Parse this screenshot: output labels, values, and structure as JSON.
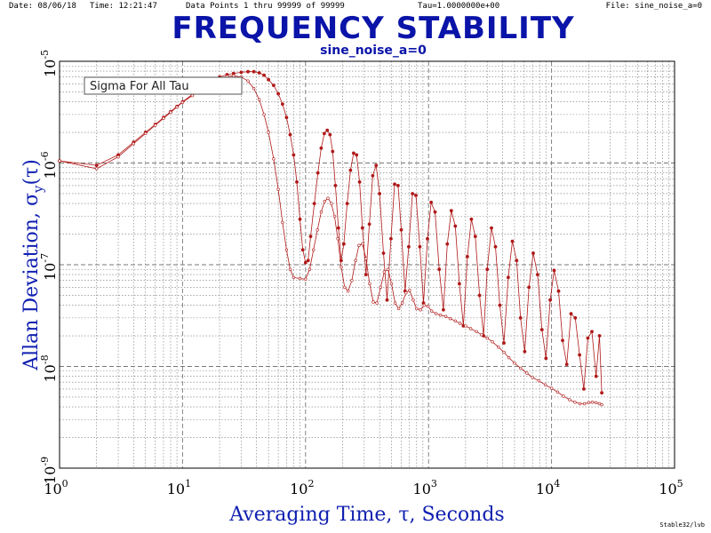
{
  "header": {
    "date": "Date: 08/06/18",
    "time": "Time: 12:21:47",
    "data_points": "Data Points 1 thru 99999 of 99999",
    "tau": "Tau=1.0000000e+00",
    "file": "File: sine_noise_a=0"
  },
  "credit": "Stable32/lvb",
  "colors": {
    "title": "#0a14a8",
    "series": "#b01818",
    "grid": "#777777"
  },
  "chart_data": {
    "type": "line",
    "title": "FREQUENCY STABILITY",
    "subtitle": "sine_noise_a=0",
    "xlabel": "Averaging Time, τ, Seconds",
    "ylabel": "Allan Deviation, σy(τ)",
    "ylabel_main": "Allan Deviation, σ",
    "ylabel_sub": "y",
    "ylabel_tail": "(τ)",
    "x_scale": "log",
    "y_scale": "log",
    "xlim": [
      1,
      100000
    ],
    "ylim": [
      1e-09,
      1e-05
    ],
    "grid": true,
    "legend_placement": "top-left",
    "legend_text": "Sigma For All Tau",
    "x_ticks": [
      {
        "base": "10",
        "exp": "0",
        "value": 1
      },
      {
        "base": "10",
        "exp": "1",
        "value": 10
      },
      {
        "base": "10",
        "exp": "2",
        "value": 100
      },
      {
        "base": "10",
        "exp": "3",
        "value": 1000
      },
      {
        "base": "10",
        "exp": "4",
        "value": 10000
      },
      {
        "base": "10",
        "exp": "5",
        "value": 100000
      }
    ],
    "y_ticks": [
      {
        "base": "10",
        "exp": "-5",
        "value": 1e-05
      },
      {
        "base": "10",
        "exp": "-6",
        "value": 1e-06
      },
      {
        "base": "10",
        "exp": "-7",
        "value": 1e-07
      },
      {
        "base": "10",
        "exp": "-8",
        "value": 1e-08
      },
      {
        "base": "10",
        "exp": "-9",
        "value": 1e-09
      }
    ],
    "series": [
      {
        "marker": "filled",
        "points": [
          [
            1,
            1.05e-06
          ],
          [
            2,
            9.5e-07
          ],
          [
            3,
            1.2e-06
          ],
          [
            4,
            1.6e-06
          ],
          [
            5,
            2e-06
          ],
          [
            6,
            2.4e-06
          ],
          [
            7,
            2.8e-06
          ],
          [
            8,
            3.2e-06
          ],
          [
            9,
            3.6e-06
          ],
          [
            10,
            4e-06
          ],
          [
            12,
            4.7e-06
          ],
          [
            14,
            5.4e-06
          ],
          [
            16,
            6e-06
          ],
          [
            18,
            6.6e-06
          ],
          [
            20,
            7e-06
          ],
          [
            23,
            7.4e-06
          ],
          [
            26,
            7.6e-06
          ],
          [
            30,
            7.8e-06
          ],
          [
            34,
            7.9e-06
          ],
          [
            38,
            7.9e-06
          ],
          [
            42,
            7.7e-06
          ],
          [
            46,
            7.3e-06
          ],
          [
            50,
            6.6e-06
          ],
          [
            55,
            5.8e-06
          ],
          [
            60,
            4.8e-06
          ],
          [
            65,
            3.8e-06
          ],
          [
            70,
            2.8e-06
          ],
          [
            75,
            1.9e-06
          ],
          [
            80,
            1.2e-06
          ],
          [
            85,
            6.5e-07
          ],
          [
            90,
            2.8e-07
          ],
          [
            95,
            1.4e-07
          ],
          [
            100,
            1.05e-07
          ],
          [
            105,
            1.1e-07
          ],
          [
            110,
            1.9e-07
          ],
          [
            118,
            4e-07
          ],
          [
            126,
            8e-07
          ],
          [
            134,
            1.4e-06
          ],
          [
            142,
            1.95e-06
          ],
          [
            150,
            2.1e-06
          ],
          [
            158,
            1.9e-06
          ],
          [
            166,
            1.3e-06
          ],
          [
            175,
            6e-07
          ],
          [
            185,
            2.3e-07
          ],
          [
            195,
            1.1e-07
          ],
          [
            205,
            1.6e-07
          ],
          [
            218,
            4e-07
          ],
          [
            232,
            8.5e-07
          ],
          [
            246,
            1.25e-06
          ],
          [
            260,
            1.2e-06
          ],
          [
            275,
            6.5e-07
          ],
          [
            290,
            2.3e-07
          ],
          [
            310,
            8e-08
          ],
          [
            330,
            2.5e-07
          ],
          [
            352,
            7.5e-07
          ],
          [
            375,
            9.5e-07
          ],
          [
            400,
            5e-07
          ],
          [
            430,
            1.3e-07
          ],
          [
            460,
            4.5e-08
          ],
          [
            495,
            1.8e-07
          ],
          [
            530,
            6.2e-07
          ],
          [
            565,
            6e-07
          ],
          [
            600,
            2.2e-07
          ],
          [
            645,
            5.5e-08
          ],
          [
            690,
            1.5e-07
          ],
          [
            740,
            5e-07
          ],
          [
            790,
            4.8e-07
          ],
          [
            850,
            1.5e-07
          ],
          [
            910,
            4.2e-08
          ],
          [
            980,
            1.8e-07
          ],
          [
            1050,
            4.1e-07
          ],
          [
            1130,
            3.3e-07
          ],
          [
            1220,
            9e-08
          ],
          [
            1320,
            3.6e-08
          ],
          [
            1420,
            1.6e-07
          ],
          [
            1530,
            3.4e-07
          ],
          [
            1650,
            2.4e-07
          ],
          [
            1780,
            6.5e-08
          ],
          [
            1920,
            2.5e-08
          ],
          [
            2070,
            1.2e-07
          ],
          [
            2230,
            2.8e-07
          ],
          [
            2400,
            1.9e-07
          ],
          [
            2600,
            5e-08
          ],
          [
            2800,
            2e-08
          ],
          [
            3000,
            9e-08
          ],
          [
            3250,
            2.3e-07
          ],
          [
            3500,
            1.5e-07
          ],
          [
            3800,
            4e-08
          ],
          [
            4100,
            1.7e-08
          ],
          [
            4450,
            7.5e-08
          ],
          [
            4800,
            1.7e-07
          ],
          [
            5200,
            1.1e-07
          ],
          [
            5600,
            3e-08
          ],
          [
            6050,
            1.4e-08
          ],
          [
            6550,
            6e-08
          ],
          [
            7100,
            1.3e-07
          ],
          [
            7700,
            8e-08
          ],
          [
            8350,
            2.3e-08
          ],
          [
            9000,
            1.2e-08
          ],
          [
            9750,
            4.5e-08
          ],
          [
            10500,
            8.8e-08
          ],
          [
            11400,
            5.5e-08
          ],
          [
            12300,
            1.8e-08
          ],
          [
            13300,
            1.05e-08
          ],
          [
            14400,
            3.3e-08
          ],
          [
            15600,
            3e-08
          ],
          [
            16900,
            1.3e-08
          ],
          [
            18300,
            6e-09
          ],
          [
            19700,
            1.9e-08
          ],
          [
            21300,
            2.2e-08
          ],
          [
            23000,
            8e-09
          ],
          [
            24500,
            2e-08
          ],
          [
            25600,
            5.5e-09
          ]
        ]
      },
      {
        "marker": "open",
        "points": [
          [
            1,
            1.05e-06
          ],
          [
            2,
            8.8e-07
          ],
          [
            3,
            1.15e-06
          ],
          [
            4,
            1.55e-06
          ],
          [
            5,
            1.95e-06
          ],
          [
            6,
            2.35e-06
          ],
          [
            7,
            2.75e-06
          ],
          [
            8,
            3.15e-06
          ],
          [
            9,
            3.55e-06
          ],
          [
            10,
            3.95e-06
          ],
          [
            12,
            4.6e-06
          ],
          [
            14,
            5.3e-06
          ],
          [
            16,
            5.9e-06
          ],
          [
            18,
            6.4e-06
          ],
          [
            20,
            6.8e-06
          ],
          [
            23,
            7.1e-06
          ],
          [
            26,
            7.2e-06
          ],
          [
            30,
            7e-06
          ],
          [
            34,
            6.4e-06
          ],
          [
            38,
            5.4e-06
          ],
          [
            42,
            4.2e-06
          ],
          [
            46,
            3e-06
          ],
          [
            50,
            2e-06
          ],
          [
            55,
            1.1e-06
          ],
          [
            60,
            5.5e-07
          ],
          [
            65,
            2.6e-07
          ],
          [
            70,
            1.4e-07
          ],
          [
            75,
            9e-08
          ],
          [
            80,
            7.5e-08
          ],
          [
            90,
            7.3e-08
          ],
          [
            100,
            7.2e-08
          ],
          [
            108,
            9e-08
          ],
          [
            116,
            1.4e-07
          ],
          [
            125,
            2.2e-07
          ],
          [
            134,
            3.3e-07
          ],
          [
            143,
            4.2e-07
          ],
          [
            152,
            4.5e-07
          ],
          [
            162,
            4e-07
          ],
          [
            172,
            3e-07
          ],
          [
            183,
            1.8e-07
          ],
          [
            195,
            9.5e-08
          ],
          [
            208,
            6e-08
          ],
          [
            222,
            5.5e-08
          ],
          [
            238,
            7e-08
          ],
          [
            255,
            1.1e-07
          ],
          [
            272,
            1.55e-07
          ],
          [
            290,
            1.6e-07
          ],
          [
            310,
            1.15e-07
          ],
          [
            332,
            6.5e-08
          ],
          [
            355,
            4.3e-08
          ],
          [
            380,
            4.2e-08
          ],
          [
            408,
            6e-08
          ],
          [
            437,
            8.5e-08
          ],
          [
            468,
            9e-08
          ],
          [
            500,
            6.5e-08
          ],
          [
            535,
            4.2e-08
          ],
          [
            572,
            3.7e-08
          ],
          [
            612,
            4.2e-08
          ],
          [
            655,
            5.3e-08
          ],
          [
            700,
            5.6e-08
          ],
          [
            750,
            4.5e-08
          ],
          [
            800,
            3.7e-08
          ],
          [
            860,
            3.6e-08
          ],
          [
            920,
            4e-08
          ],
          [
            990,
            3.9e-08
          ],
          [
            1060,
            3.5e-08
          ],
          [
            1150,
            3.3e-08
          ],
          [
            1250,
            3.2e-08
          ],
          [
            1380,
            3.1e-08
          ],
          [
            1500,
            2.95e-08
          ],
          [
            1650,
            2.8e-08
          ],
          [
            1800,
            2.65e-08
          ],
          [
            2000,
            2.5e-08
          ],
          [
            2200,
            2.35e-08
          ],
          [
            2450,
            2.2e-08
          ],
          [
            2700,
            2.05e-08
          ],
          [
            3000,
            1.9e-08
          ],
          [
            3300,
            1.75e-08
          ],
          [
            3700,
            1.55e-08
          ],
          [
            4100,
            1.38e-08
          ],
          [
            4500,
            1.22e-08
          ],
          [
            5000,
            1.08e-08
          ],
          [
            5600,
            9.6e-09
          ],
          [
            6300,
            8.6e-09
          ],
          [
            7000,
            7.8e-09
          ],
          [
            7900,
            7.2e-09
          ],
          [
            8900,
            6.6e-09
          ],
          [
            10000,
            6.1e-09
          ],
          [
            11200,
            5.6e-09
          ],
          [
            12500,
            5.1e-09
          ],
          [
            14000,
            4.7e-09
          ],
          [
            15500,
            4.45e-09
          ],
          [
            17000,
            4.3e-09
          ],
          [
            18500,
            4.3e-09
          ],
          [
            20000,
            4.4e-09
          ],
          [
            21500,
            4.45e-09
          ],
          [
            23000,
            4.4e-09
          ],
          [
            24500,
            4.3e-09
          ],
          [
            25600,
            4.2e-09
          ]
        ]
      }
    ]
  }
}
